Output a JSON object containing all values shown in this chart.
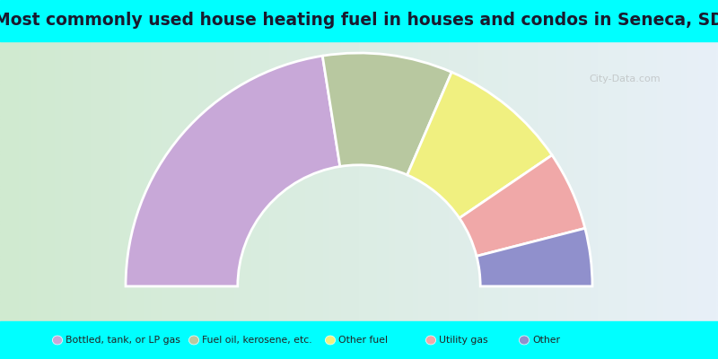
{
  "title": "Most commonly used house heating fuel in houses and condos in Seneca, SD",
  "segments": [
    {
      "label": "Bottled, tank, or LP gas",
      "value": 45,
      "color": "#C8A8D8"
    },
    {
      "label": "Fuel oil, kerosene, etc.",
      "value": 18,
      "color": "#B8C8A0"
    },
    {
      "label": "Other fuel",
      "value": 18,
      "color": "#F0F080"
    },
    {
      "label": "Utility gas",
      "value": 11,
      "color": "#F0A8A8"
    },
    {
      "label": "Other",
      "value": 8,
      "color": "#9090CC"
    }
  ],
  "title_color": "#1a1a2e",
  "title_fontsize": 13.5,
  "cyan_color": "#00FFFF",
  "watermark": "City-Data.com",
  "top_bar_height": 0.115,
  "bottom_bar_height": 0.105,
  "outer_r": 1.0,
  "inner_r": 0.52
}
